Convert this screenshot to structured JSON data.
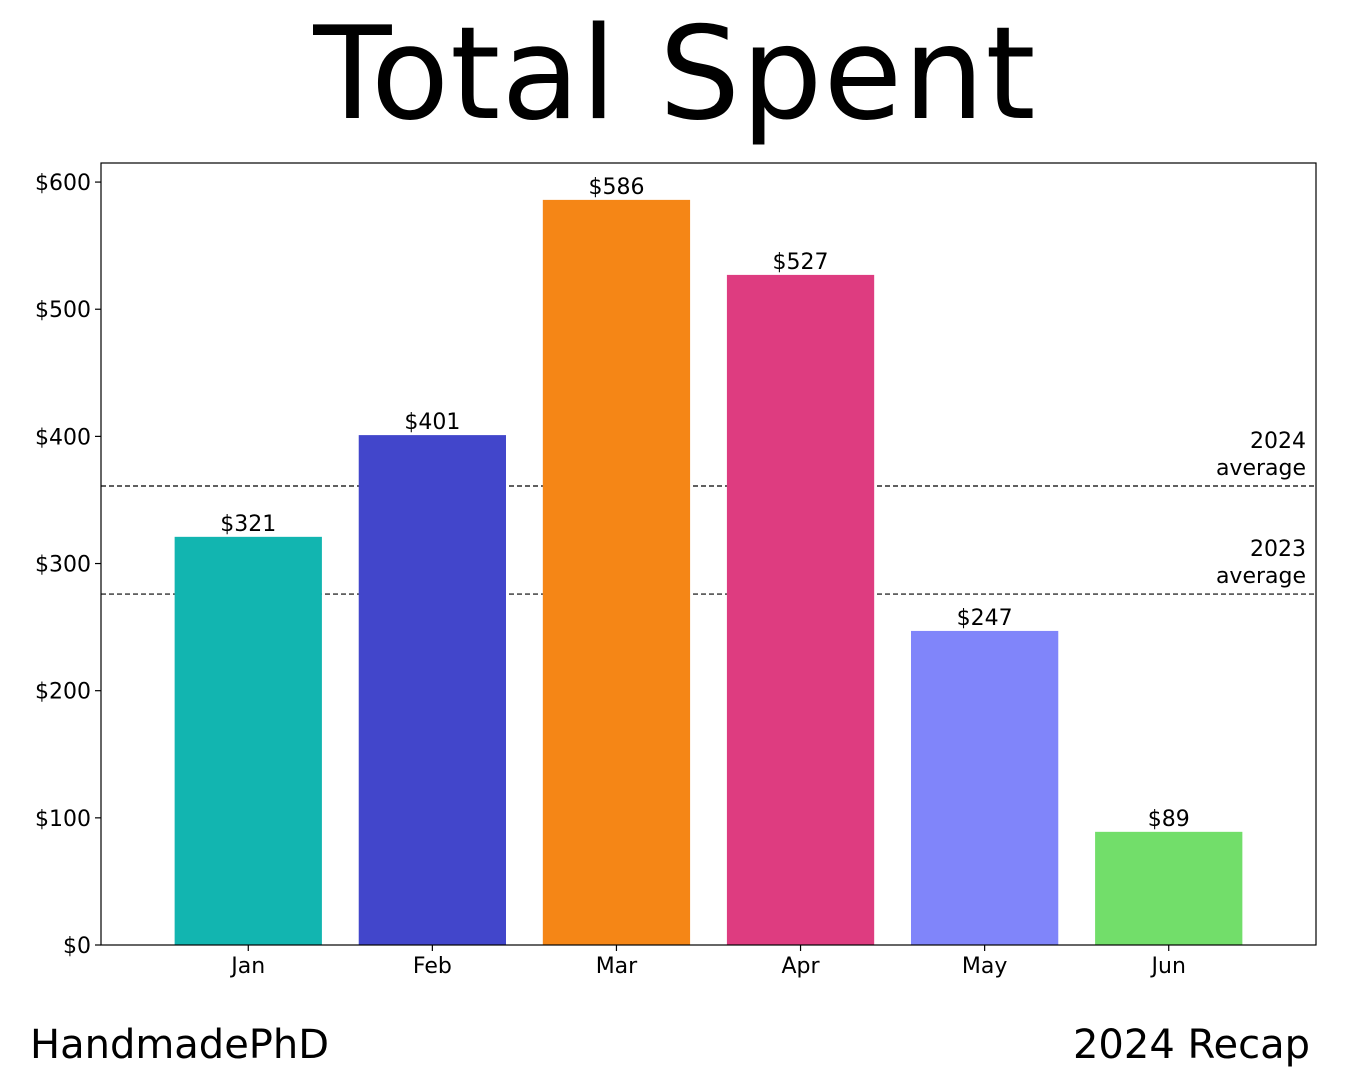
{
  "chart_data": {
    "type": "bar",
    "title": "Total Spent",
    "categories": [
      "Jan",
      "Feb",
      "Mar",
      "Apr",
      "May",
      "Jun"
    ],
    "values": [
      321,
      401,
      586,
      527,
      247,
      89
    ],
    "value_labels": [
      "$321",
      "$401",
      "$586",
      "$527",
      "$247",
      "$89"
    ],
    "bar_colors": [
      "#12b5b0",
      "#4246cb",
      "#f58616",
      "#de3c80",
      "#8085fa",
      "#72de6a"
    ],
    "ylim": [
      0,
      615
    ],
    "yticks": [
      0,
      100,
      200,
      300,
      400,
      500,
      600
    ],
    "ytick_labels": [
      "$0",
      "$100",
      "$200",
      "$300",
      "$400",
      "$500",
      "$600"
    ],
    "xlabel": "",
    "ylabel": "",
    "grid": false,
    "reference_lines": [
      {
        "label_line1": "2024",
        "label_line2": "average",
        "value": 361,
        "style": "dashed"
      },
      {
        "label_line1": "2023",
        "label_line2": "average",
        "value": 276,
        "style": "dashed"
      }
    ]
  },
  "footer": {
    "left": "HandmadePhD",
    "right": "2024 Recap"
  }
}
